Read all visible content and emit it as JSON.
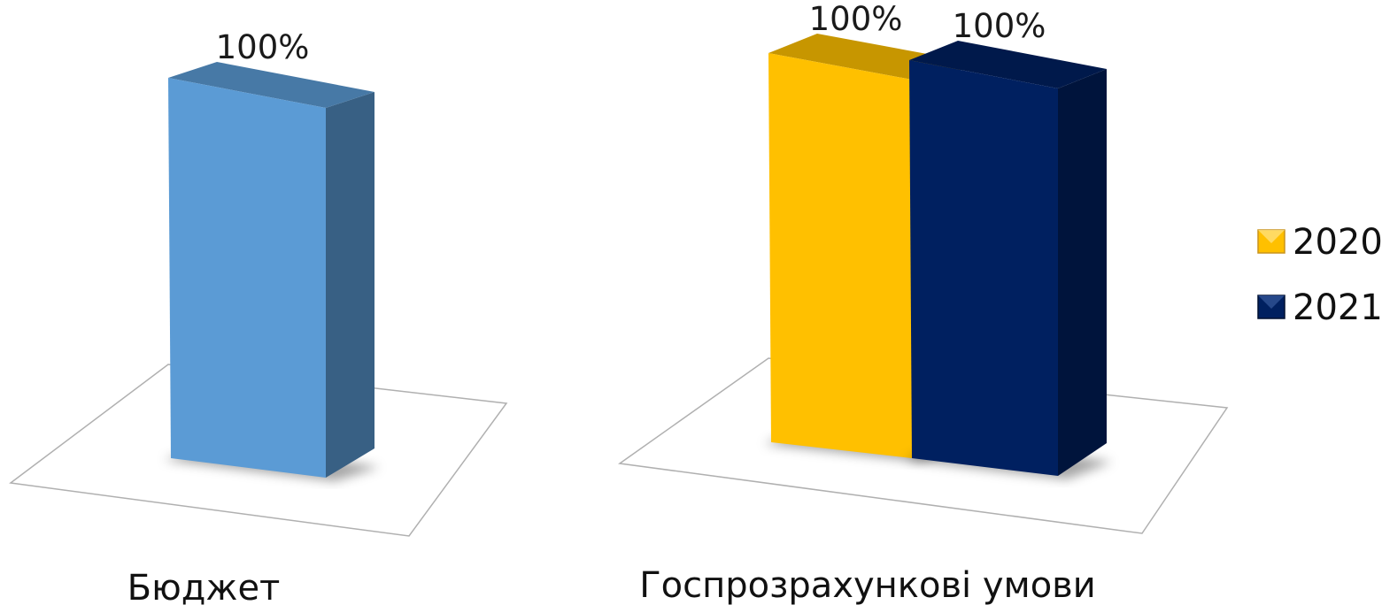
{
  "chart_data": {
    "type": "bar",
    "categories": [
      "Бюджет",
      "Госпрозрахункові умови"
    ],
    "series": [
      {
        "name": "2020",
        "values": [
          100,
          100
        ],
        "labels": [
          "100%",
          "100%"
        ]
      },
      {
        "name": "2021",
        "values": [
          null,
          100
        ],
        "labels": [
          null,
          "100%"
        ]
      }
    ],
    "ylim": [
      0,
      100
    ],
    "unit": "%",
    "grid": false,
    "legend": {
      "position": "right",
      "entries": [
        "2020",
        "2021"
      ]
    },
    "colors": {
      "budget": "#5B9BD5",
      "2020": "#FFC000",
      "2021": "#002060"
    }
  }
}
